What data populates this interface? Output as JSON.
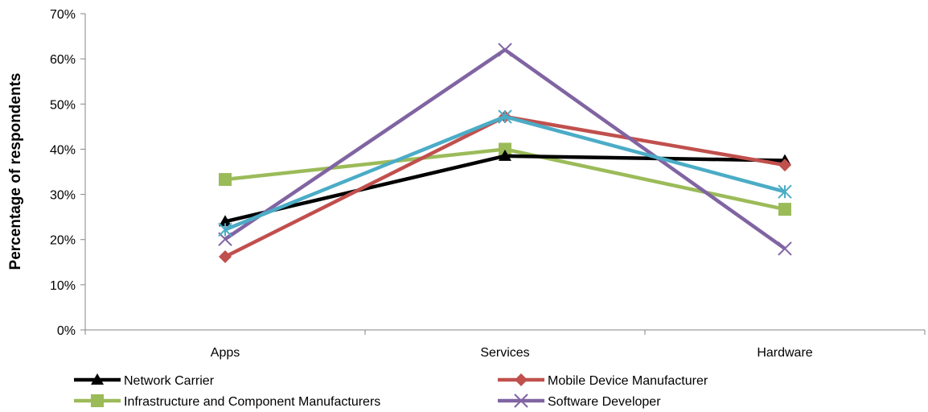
{
  "chart_data": {
    "type": "line",
    "title": "",
    "xlabel": "",
    "ylabel": "Percentage of respondents",
    "categories": [
      "Apps",
      "Services",
      "Hardware"
    ],
    "ylim": [
      0,
      70
    ],
    "ytick_labels": [
      "0%",
      "10%",
      "20%",
      "30%",
      "40%",
      "50%",
      "60%",
      "70%"
    ],
    "grid": false,
    "legend_position": "bottom",
    "series": [
      {
        "name": "Network Carrier",
        "values": [
          24,
          38.5,
          37.5
        ],
        "color": "#000000",
        "marker": "triangle",
        "in_legend": true
      },
      {
        "name": "Mobile Device Manufacturer",
        "values": [
          16.2,
          47.2,
          36.5
        ],
        "color": "#C0504D",
        "marker": "diamond",
        "in_legend": true
      },
      {
        "name": "Infrastructure and Component Manufacturers",
        "values": [
          33.3,
          40,
          26.7
        ],
        "color": "#9BBB59",
        "marker": "square",
        "in_legend": true
      },
      {
        "name": "Software Developer",
        "values": [
          20.1,
          62,
          18
        ],
        "color": "#8064A2",
        "marker": "x",
        "in_legend": true
      },
      {
        "name": "",
        "values": [
          22.2,
          47.2,
          30.6
        ],
        "color": "#4BACC6",
        "marker": "star",
        "in_legend": false
      }
    ]
  }
}
